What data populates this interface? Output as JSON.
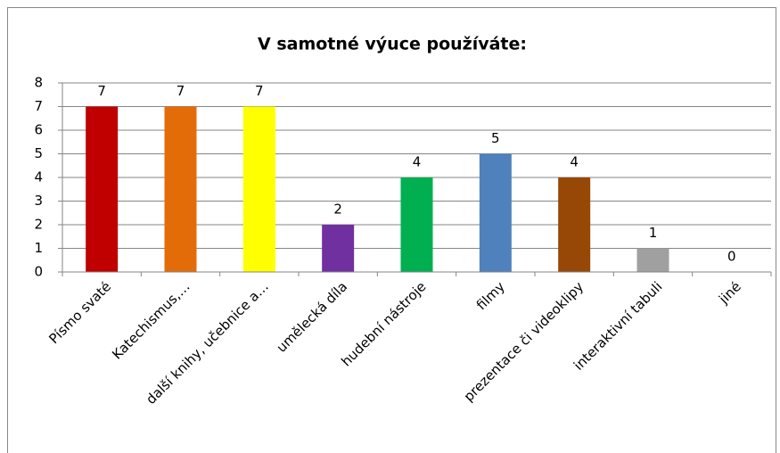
{
  "chart_data": {
    "type": "bar",
    "title": "V samotné výuce používáte:",
    "categories": [
      "Písmo svaté",
      "Katechismus,…",
      "další knihy, učebnice a…",
      "umělecká díla",
      "hudební nástroje",
      "filmy",
      "prezentace či videoklipy",
      "interaktivní tabuli",
      "jiné"
    ],
    "values": [
      7,
      7,
      7,
      2,
      4,
      5,
      4,
      1,
      0
    ],
    "colors": [
      "#c00000",
      "#e36c09",
      "#ffff00",
      "#7030a0",
      "#00b050",
      "#4f81bd",
      "#974806",
      "#a0a0a0",
      "#808080"
    ],
    "ylim": [
      0,
      8
    ],
    "yticks": [
      0,
      1,
      2,
      3,
      4,
      5,
      6,
      7,
      8
    ],
    "grid": true
  }
}
